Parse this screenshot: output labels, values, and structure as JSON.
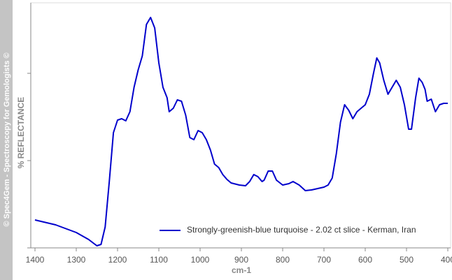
{
  "sidebar": {
    "text": "© Spec4Gem - Spectroscopy for Gemologists ©"
  },
  "chart_data": {
    "type": "line",
    "xlabel": "cm-1",
    "ylabel": "% REFLECTANCE",
    "xlim": [
      1400,
      400
    ],
    "xticks": [
      1400,
      1300,
      1200,
      1100,
      1000,
      900,
      800,
      700,
      600,
      500,
      400
    ],
    "ylim": [
      0,
      350
    ],
    "legend": "lower right",
    "x": [
      1400,
      1350,
      1300,
      1270,
      1250,
      1240,
      1230,
      1220,
      1210,
      1200,
      1190,
      1180,
      1170,
      1160,
      1150,
      1140,
      1130,
      1120,
      1110,
      1100,
      1090,
      1080,
      1075,
      1065,
      1055,
      1045,
      1035,
      1025,
      1015,
      1005,
      995,
      985,
      975,
      965,
      955,
      945,
      935,
      925,
      905,
      890,
      880,
      870,
      860,
      850,
      845,
      835,
      825,
      815,
      800,
      785,
      775,
      760,
      745,
      730,
      715,
      700,
      690,
      680,
      670,
      660,
      650,
      640,
      630,
      620,
      610,
      600,
      590,
      580,
      572,
      565,
      555,
      545,
      535,
      525,
      515,
      505,
      495,
      488,
      478,
      470,
      462,
      455,
      450,
      440,
      430,
      420,
      410,
      400
    ],
    "series": [
      {
        "name": "Strongly-greenish-blue turquoise - 2.02 ct slice - Kerman, Iran",
        "color": "#0000cc",
        "values": [
          40,
          33,
          22,
          12,
          3,
          5,
          30,
          95,
          165,
          183,
          185,
          182,
          195,
          230,
          255,
          275,
          320,
          330,
          315,
          265,
          230,
          215,
          195,
          200,
          212,
          210,
          190,
          158,
          155,
          168,
          165,
          155,
          140,
          120,
          115,
          105,
          98,
          93,
          90,
          89,
          95,
          105,
          102,
          95,
          97,
          110,
          110,
          97,
          90,
          92,
          95,
          90,
          82,
          83,
          85,
          87,
          90,
          100,
          135,
          180,
          205,
          197,
          185,
          195,
          200,
          205,
          220,
          250,
          272,
          265,
          240,
          220,
          230,
          240,
          230,
          205,
          170,
          170,
          215,
          243,
          237,
          227,
          210,
          213,
          195,
          205,
          207,
          207
        ]
      }
    ]
  }
}
